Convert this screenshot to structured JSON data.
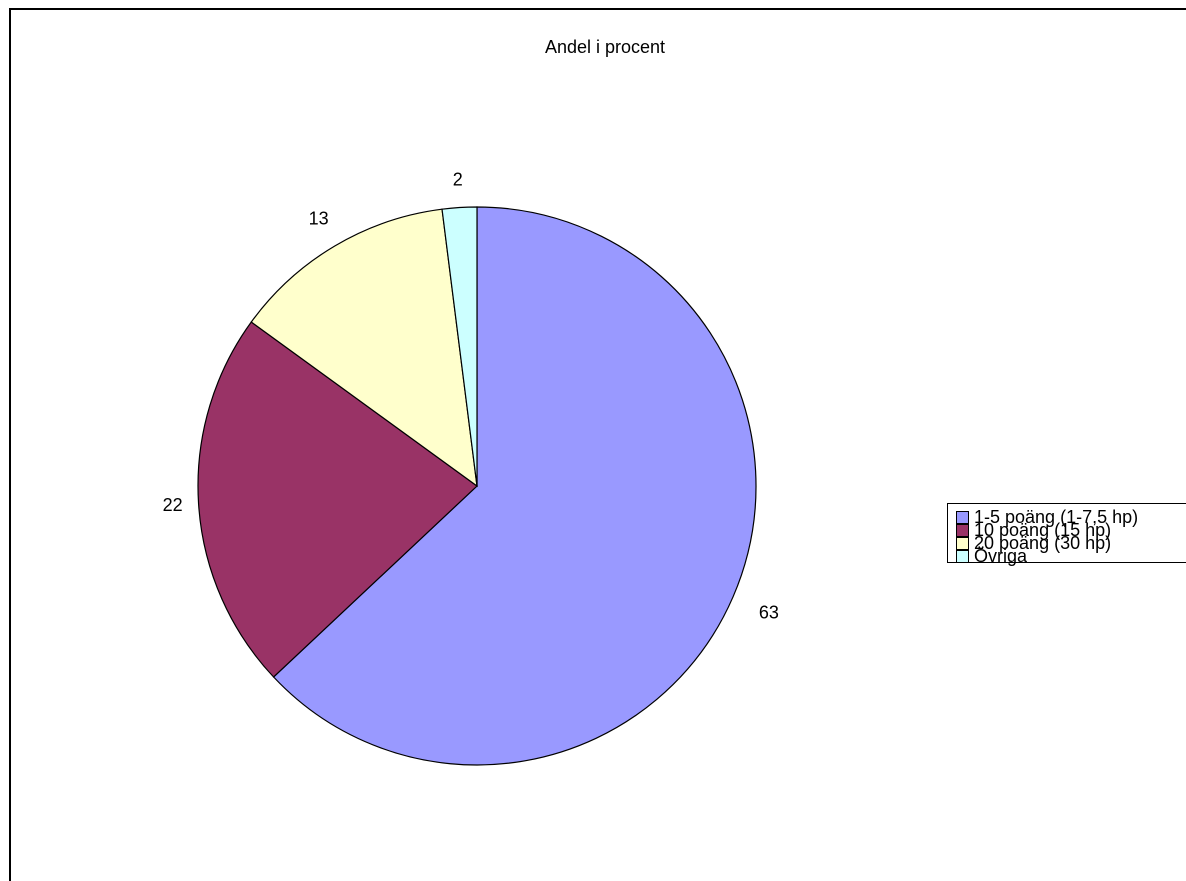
{
  "chart_data": {
    "type": "pie",
    "title": "Andel i procent",
    "categories": [
      "1-5 poäng (1-7,5 hp)",
      "10 poäng (15 hp)",
      "20 poäng (30 hp)",
      "Övriga"
    ],
    "values": [
      63,
      22,
      13,
      2
    ],
    "data_labels": [
      "63",
      "22",
      "13",
      "2"
    ],
    "colors": [
      "#9999ff",
      "#993366",
      "#ffffcc",
      "#ccffff"
    ],
    "legend_position": "right",
    "start": "top, clockwise"
  }
}
